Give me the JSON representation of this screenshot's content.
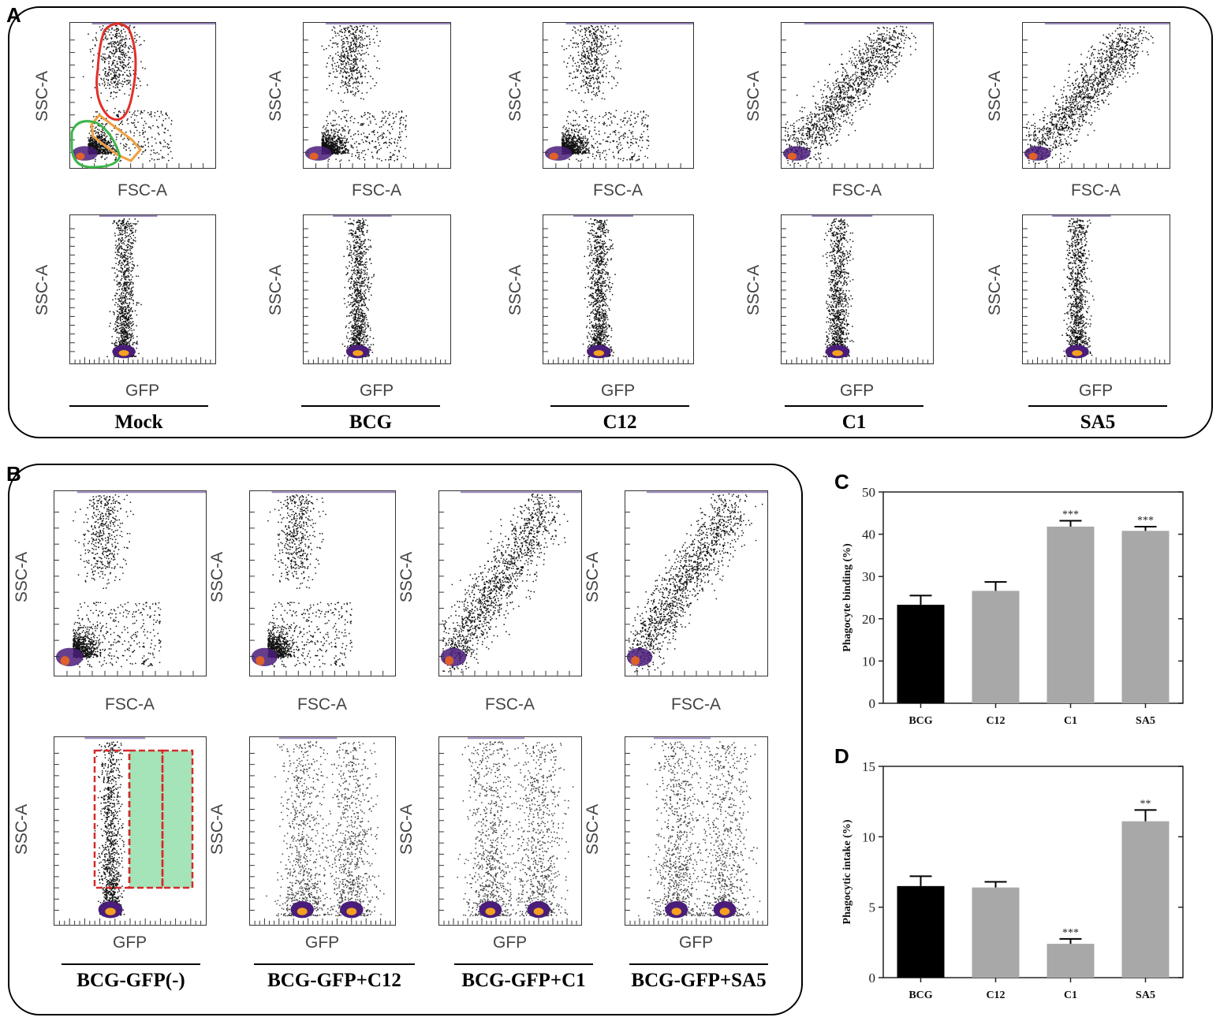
{
  "panels": {
    "a": "A",
    "b": "B",
    "c": "C",
    "d": "D"
  },
  "flow_labels": {
    "ssc": "SSC-A",
    "fsc": "FSC-A",
    "gfp": "GFP"
  },
  "groups_a": [
    "Mock",
    "BCG",
    "C12",
    "C1",
    "SA5"
  ],
  "groups_b": [
    "BCG-GFP(-)",
    "BCG-GFP+C12",
    "BCG-GFP+C1",
    "BCG-GFP+SA5"
  ],
  "gate_colors": {
    "red": "#e0302a",
    "orange": "#f0a040",
    "green": "#3cb54a",
    "gfp_gate": "#d42a2a",
    "gfp_fill": "#7fd99a"
  },
  "chart_data": [
    {
      "type": "bar",
      "panel": "C",
      "categories": [
        "BCG",
        "C12",
        "C1",
        "SA5"
      ],
      "values": [
        23.3,
        26.6,
        41.8,
        40.8
      ],
      "errors": [
        2.2,
        2.1,
        1.4,
        1.0
      ],
      "significance": [
        "",
        "",
        "***",
        "***"
      ],
      "colors": [
        "#000000",
        "#a8a8a8",
        "#a8a8a8",
        "#a8a8a8"
      ],
      "ylabel": "Phagocyte binding (%)",
      "ylim": [
        0,
        50
      ],
      "yticks": [
        0,
        10,
        20,
        30,
        40,
        50
      ]
    },
    {
      "type": "bar",
      "panel": "D",
      "categories": [
        "BCG",
        "C12",
        "C1",
        "SA5"
      ],
      "values": [
        6.5,
        6.4,
        2.4,
        11.1
      ],
      "errors": [
        0.7,
        0.4,
        0.35,
        0.8
      ],
      "significance": [
        "",
        "",
        "***",
        "**"
      ],
      "colors": [
        "#000000",
        "#a8a8a8",
        "#a8a8a8",
        "#a8a8a8"
      ],
      "ylabel": "Phagocytic intake (%)",
      "ylim": [
        0,
        15
      ],
      "yticks": [
        0,
        5,
        10,
        15
      ]
    }
  ]
}
